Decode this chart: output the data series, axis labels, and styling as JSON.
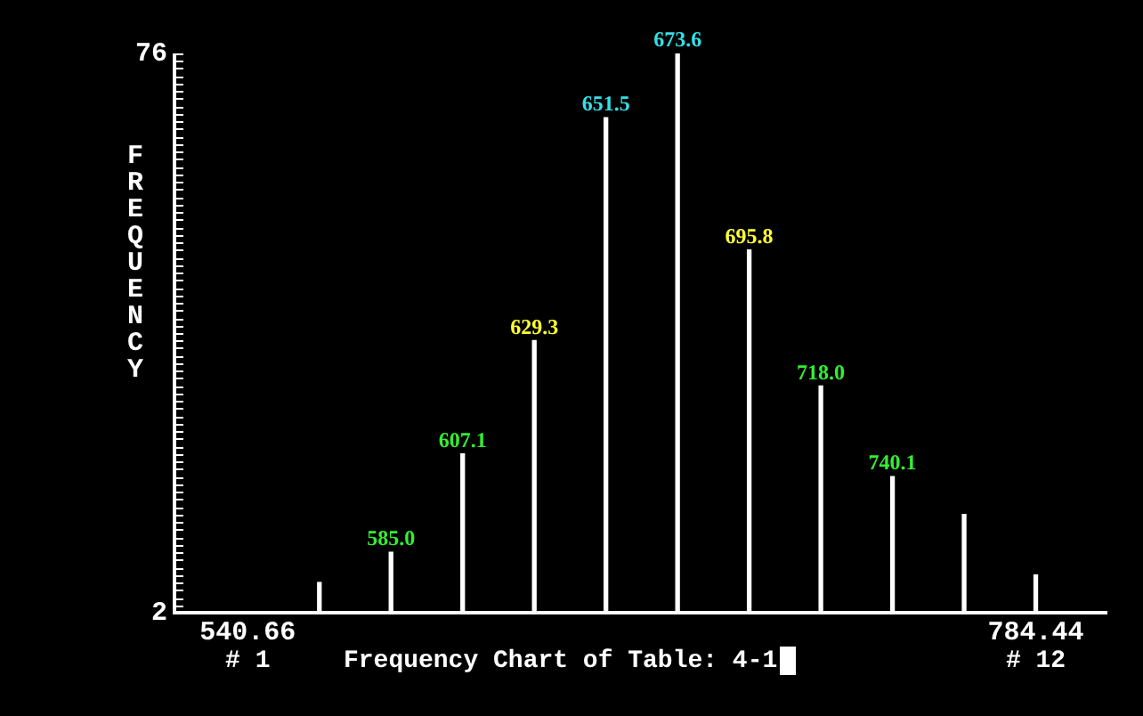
{
  "chart_data": {
    "type": "bar",
    "title": "Frequency Chart of Table: 4-1",
    "ylabel": "FREQUENCY",
    "x": [
      562.82,
      584.98,
      607.15,
      629.31,
      651.47,
      673.63,
      695.79,
      717.96,
      740.12,
      762.28,
      784.44
    ],
    "values": [
      6,
      10,
      23,
      38,
      67.5,
      76,
      50,
      32,
      20,
      15,
      7
    ],
    "color": "#ffffff",
    "xlim": [
      518,
      806.6
    ],
    "xticks": [
      540.66,
      784.44
    ],
    "ylim": [
      2,
      76
    ],
    "yticks": [
      2,
      {
        "value": 3,
        "label": null
      },
      {
        "value": 4,
        "label": null
      },
      {
        "value": 5,
        "label": null
      },
      {
        "value": 6,
        "label": null
      },
      {
        "value": 7,
        "label": null
      },
      {
        "value": 8,
        "label": null
      },
      {
        "value": 9,
        "label": null
      },
      {
        "value": 10,
        "label": null
      },
      {
        "value": 11,
        "label": null
      },
      {
        "value": 12,
        "label": null
      },
      {
        "value": 13,
        "label": null
      },
      {
        "value": 14,
        "label": null
      },
      {
        "value": 15,
        "label": null
      },
      {
        "value": 16,
        "label": null
      },
      {
        "value": 17,
        "label": null
      },
      {
        "value": 18,
        "label": null
      },
      {
        "value": 19,
        "label": null
      },
      {
        "value": 20,
        "label": null
      },
      {
        "value": 21,
        "label": null
      },
      {
        "value": 22,
        "label": null
      },
      {
        "value": 23,
        "label": null
      },
      {
        "value": 24,
        "label": null
      },
      {
        "value": 25,
        "label": null
      },
      {
        "value": 26,
        "label": null
      },
      {
        "value": 27,
        "label": null
      },
      {
        "value": 28,
        "label": null
      },
      {
        "value": 29,
        "label": null
      },
      {
        "value": 30,
        "label": null
      },
      {
        "value": 31,
        "label": null
      },
      {
        "value": 32,
        "label": null
      },
      {
        "value": 33,
        "label": null
      },
      {
        "value": 34,
        "label": null
      },
      {
        "value": 35,
        "label": null
      },
      {
        "value": 36,
        "label": null
      },
      {
        "value": 37,
        "label": null
      },
      {
        "value": 38,
        "label": null
      },
      {
        "value": 39,
        "label": null
      },
      {
        "value": 40,
        "label": null
      },
      {
        "value": 41,
        "label": null
      },
      {
        "value": 42,
        "label": null
      },
      {
        "value": 43,
        "label": null
      },
      {
        "value": 44,
        "label": null
      },
      {
        "value": 45,
        "label": null
      },
      {
        "value": 46,
        "label": null
      },
      {
        "value": 47,
        "label": null
      },
      {
        "value": 48,
        "label": null
      },
      {
        "value": 49,
        "label": null
      },
      {
        "value": 50,
        "label": null
      },
      {
        "value": 51,
        "label": null
      },
      {
        "value": 52,
        "label": null
      },
      {
        "value": 53,
        "label": null
      },
      {
        "value": 54,
        "label": null
      },
      {
        "value": 55,
        "label": null
      },
      {
        "value": 56,
        "label": null
      },
      {
        "value": 57,
        "label": null
      },
      {
        "value": 58,
        "label": null
      },
      {
        "value": 59,
        "label": null
      },
      {
        "value": 60,
        "label": null
      },
      {
        "value": 61,
        "label": null
      },
      {
        "value": 62,
        "label": null
      },
      {
        "value": 63,
        "label": null
      },
      {
        "value": 64,
        "label": null
      },
      {
        "value": 65,
        "label": null
      },
      {
        "value": 66,
        "label": null
      },
      {
        "value": 67,
        "label": null
      },
      {
        "value": 68,
        "label": null
      },
      {
        "value": 69,
        "label": null
      },
      {
        "value": 70,
        "label": null
      },
      {
        "value": 71,
        "label": null
      },
      {
        "value": 72,
        "label": null
      },
      {
        "value": 73,
        "label": null
      },
      {
        "value": 74,
        "label": null
      },
      {
        "value": 75,
        "label": null
      },
      76
    ],
    "annotations": [
      "# 1",
      "# 12",
      {
        "text": "585.0",
        "x": 584.98,
        "y": 10
      },
      {
        "text": "607.1",
        "x": 607.15,
        "y": 23
      },
      {
        "text": "629.3",
        "x": 629.31,
        "y": 38
      },
      {
        "text": "651.5",
        "x": 651.47,
        "y": 67.5
      },
      {
        "text": "673.6",
        "x": 673.63,
        "y": 76
      },
      {
        "text": "695.8",
        "x": 695.79,
        "y": 50
      },
      {
        "text": "718.0",
        "x": 717.96,
        "y": 32
      },
      {
        "text": "740.1",
        "x": 740.12,
        "y": 20
      }
    ],
    "grid": false,
    "legend": false
  }
}
